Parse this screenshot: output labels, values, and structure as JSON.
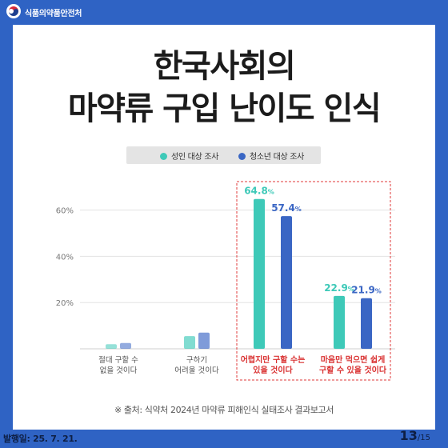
{
  "agency": "식품의약품안전처",
  "title_line1": "한국사회의",
  "title_line2": "마약류 구입 난이도 인식",
  "legend": [
    {
      "label": "성인 대상 조사",
      "color": "#3ec9b8"
    },
    {
      "label": "청소년 대상 조사",
      "color": "#3a66c4"
    }
  ],
  "source": "※ 출처: 식약처 2024년 마약류 피해인식 실태조사 결과보고서",
  "issue_date": "발행일: 25. 7. 21.",
  "page": {
    "current": "13",
    "total": "/15"
  },
  "colors": {
    "highlight_border": "#e23b3b",
    "highlight_text": "#d93030",
    "background": "#2f63c4"
  },
  "chart_data": {
    "type": "bar",
    "categories": [
      [
        "절대 구할 수",
        "없을 것이다"
      ],
      [
        "구하기",
        "어려울 것이다"
      ],
      [
        "어렵지만 구할 수는",
        "있을 것이다"
      ],
      [
        "마음만 먹으면 쉽게",
        "구할 수 있을 것이다"
      ]
    ],
    "series": [
      {
        "name": "성인 대상 조사",
        "values": [
          2.0,
          5.5,
          64.8,
          22.9
        ]
      },
      {
        "name": "청소년 대상 조사",
        "values": [
          2.5,
          7.0,
          57.4,
          21.9
        ]
      }
    ],
    "value_labels": [
      [
        null,
        null,
        "64.8",
        "22.9"
      ],
      [
        null,
        null,
        "57.4",
        "21.9"
      ]
    ],
    "unit": "%",
    "yticks": [
      20,
      40,
      60
    ],
    "ytick_labels": [
      "20%",
      "40%",
      "60%"
    ],
    "ylim": [
      0,
      65
    ],
    "highlighted_categories": [
      2,
      3
    ],
    "grid": true,
    "legend_position": "top-center"
  }
}
